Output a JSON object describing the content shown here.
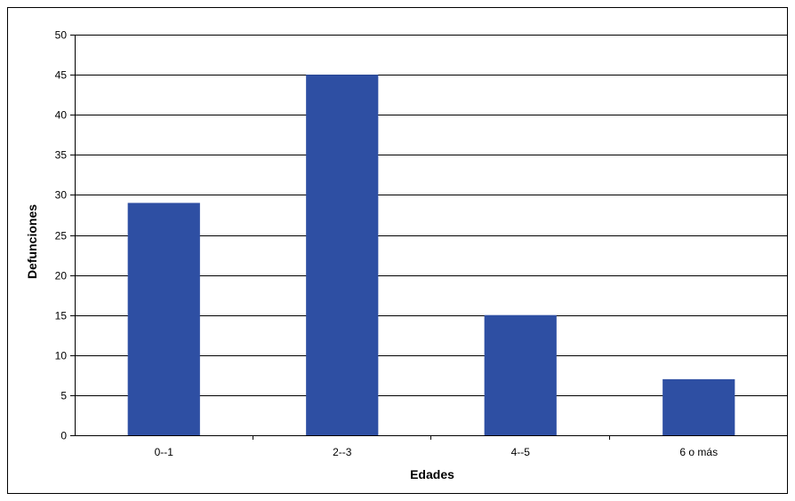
{
  "chart_data": {
    "type": "bar",
    "title": "",
    "xlabel": "Edades",
    "ylabel": "Defunciones",
    "categories": [
      "0--1",
      "2--3",
      "4--5",
      "6 o más"
    ],
    "values": [
      29,
      45,
      15,
      7
    ],
    "ylim": [
      0,
      50
    ],
    "yticks": [
      0,
      5,
      10,
      15,
      20,
      25,
      30,
      35,
      40,
      45,
      50
    ],
    "grid": true,
    "legend": "none",
    "colors": {
      "bar": "#2E4FA3",
      "grid": "#000000",
      "axis": "#000000"
    }
  }
}
